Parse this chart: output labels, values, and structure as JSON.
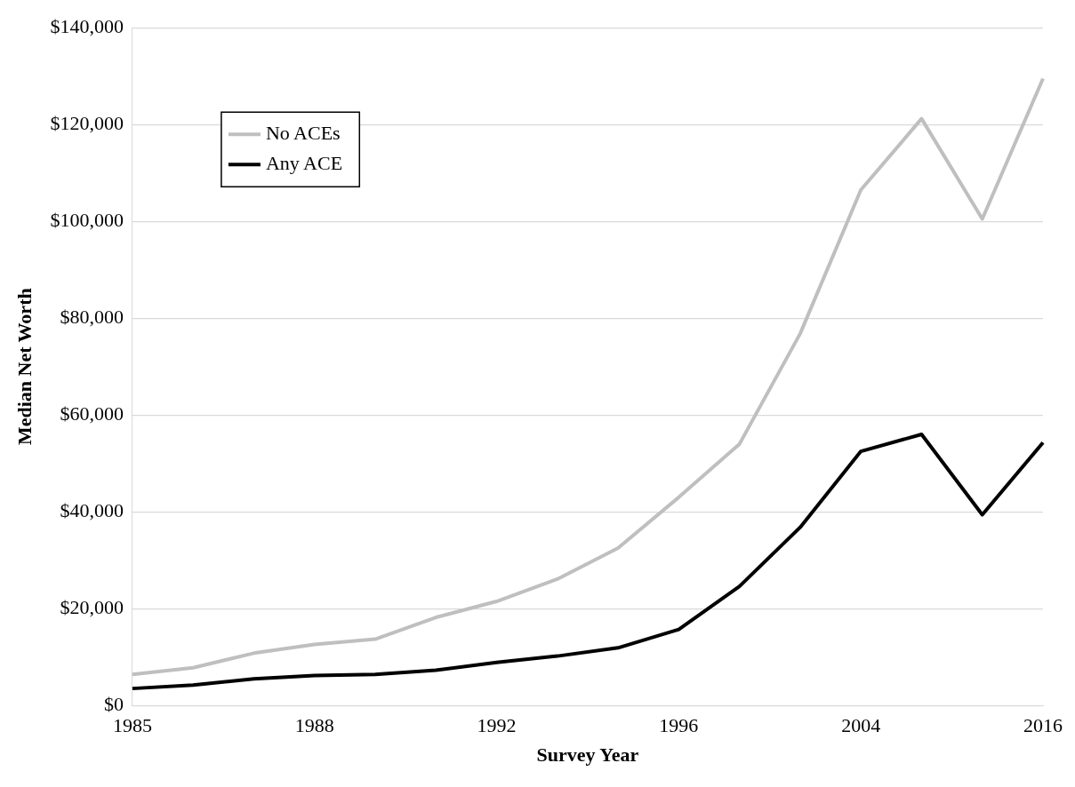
{
  "chart_data": {
    "type": "line",
    "xlabel": "Survey Year",
    "ylabel": "Median Net Worth",
    "categories": [
      "1985",
      null,
      null,
      "1988",
      null,
      null,
      "1992",
      null,
      null,
      "1996",
      null,
      null,
      "2004",
      null,
      null,
      "2016"
    ],
    "series": [
      {
        "name": "No ACEs",
        "color": "#bfbfbf",
        "values": [
          6400,
          7800,
          10800,
          12600,
          13700,
          18200,
          21500,
          26100,
          32500,
          43000,
          54000,
          76800,
          106500,
          121200,
          100500,
          129500
        ]
      },
      {
        "name": "Any ACE",
        "color": "#000000",
        "values": [
          3500,
          4200,
          5500,
          6200,
          6400,
          7300,
          8900,
          10200,
          11900,
          15700,
          24600,
          36800,
          52500,
          56000,
          39400,
          54300
        ]
      }
    ],
    "ylim": [
      0,
      140000
    ],
    "yticks": [
      {
        "value": 0,
        "label": "$0"
      },
      {
        "value": 20000,
        "label": "$20,000"
      },
      {
        "value": 40000,
        "label": "$40,000"
      },
      {
        "value": 60000,
        "label": "$60,000"
      },
      {
        "value": 80000,
        "label": "$80,000"
      },
      {
        "value": 100000,
        "label": "$100,000"
      },
      {
        "value": 120000,
        "label": "$120,000"
      },
      {
        "value": 140000,
        "label": "$140,000"
      }
    ],
    "grid": "y",
    "legend": "top left",
    "marker": "none",
    "line_style": "solid"
  }
}
